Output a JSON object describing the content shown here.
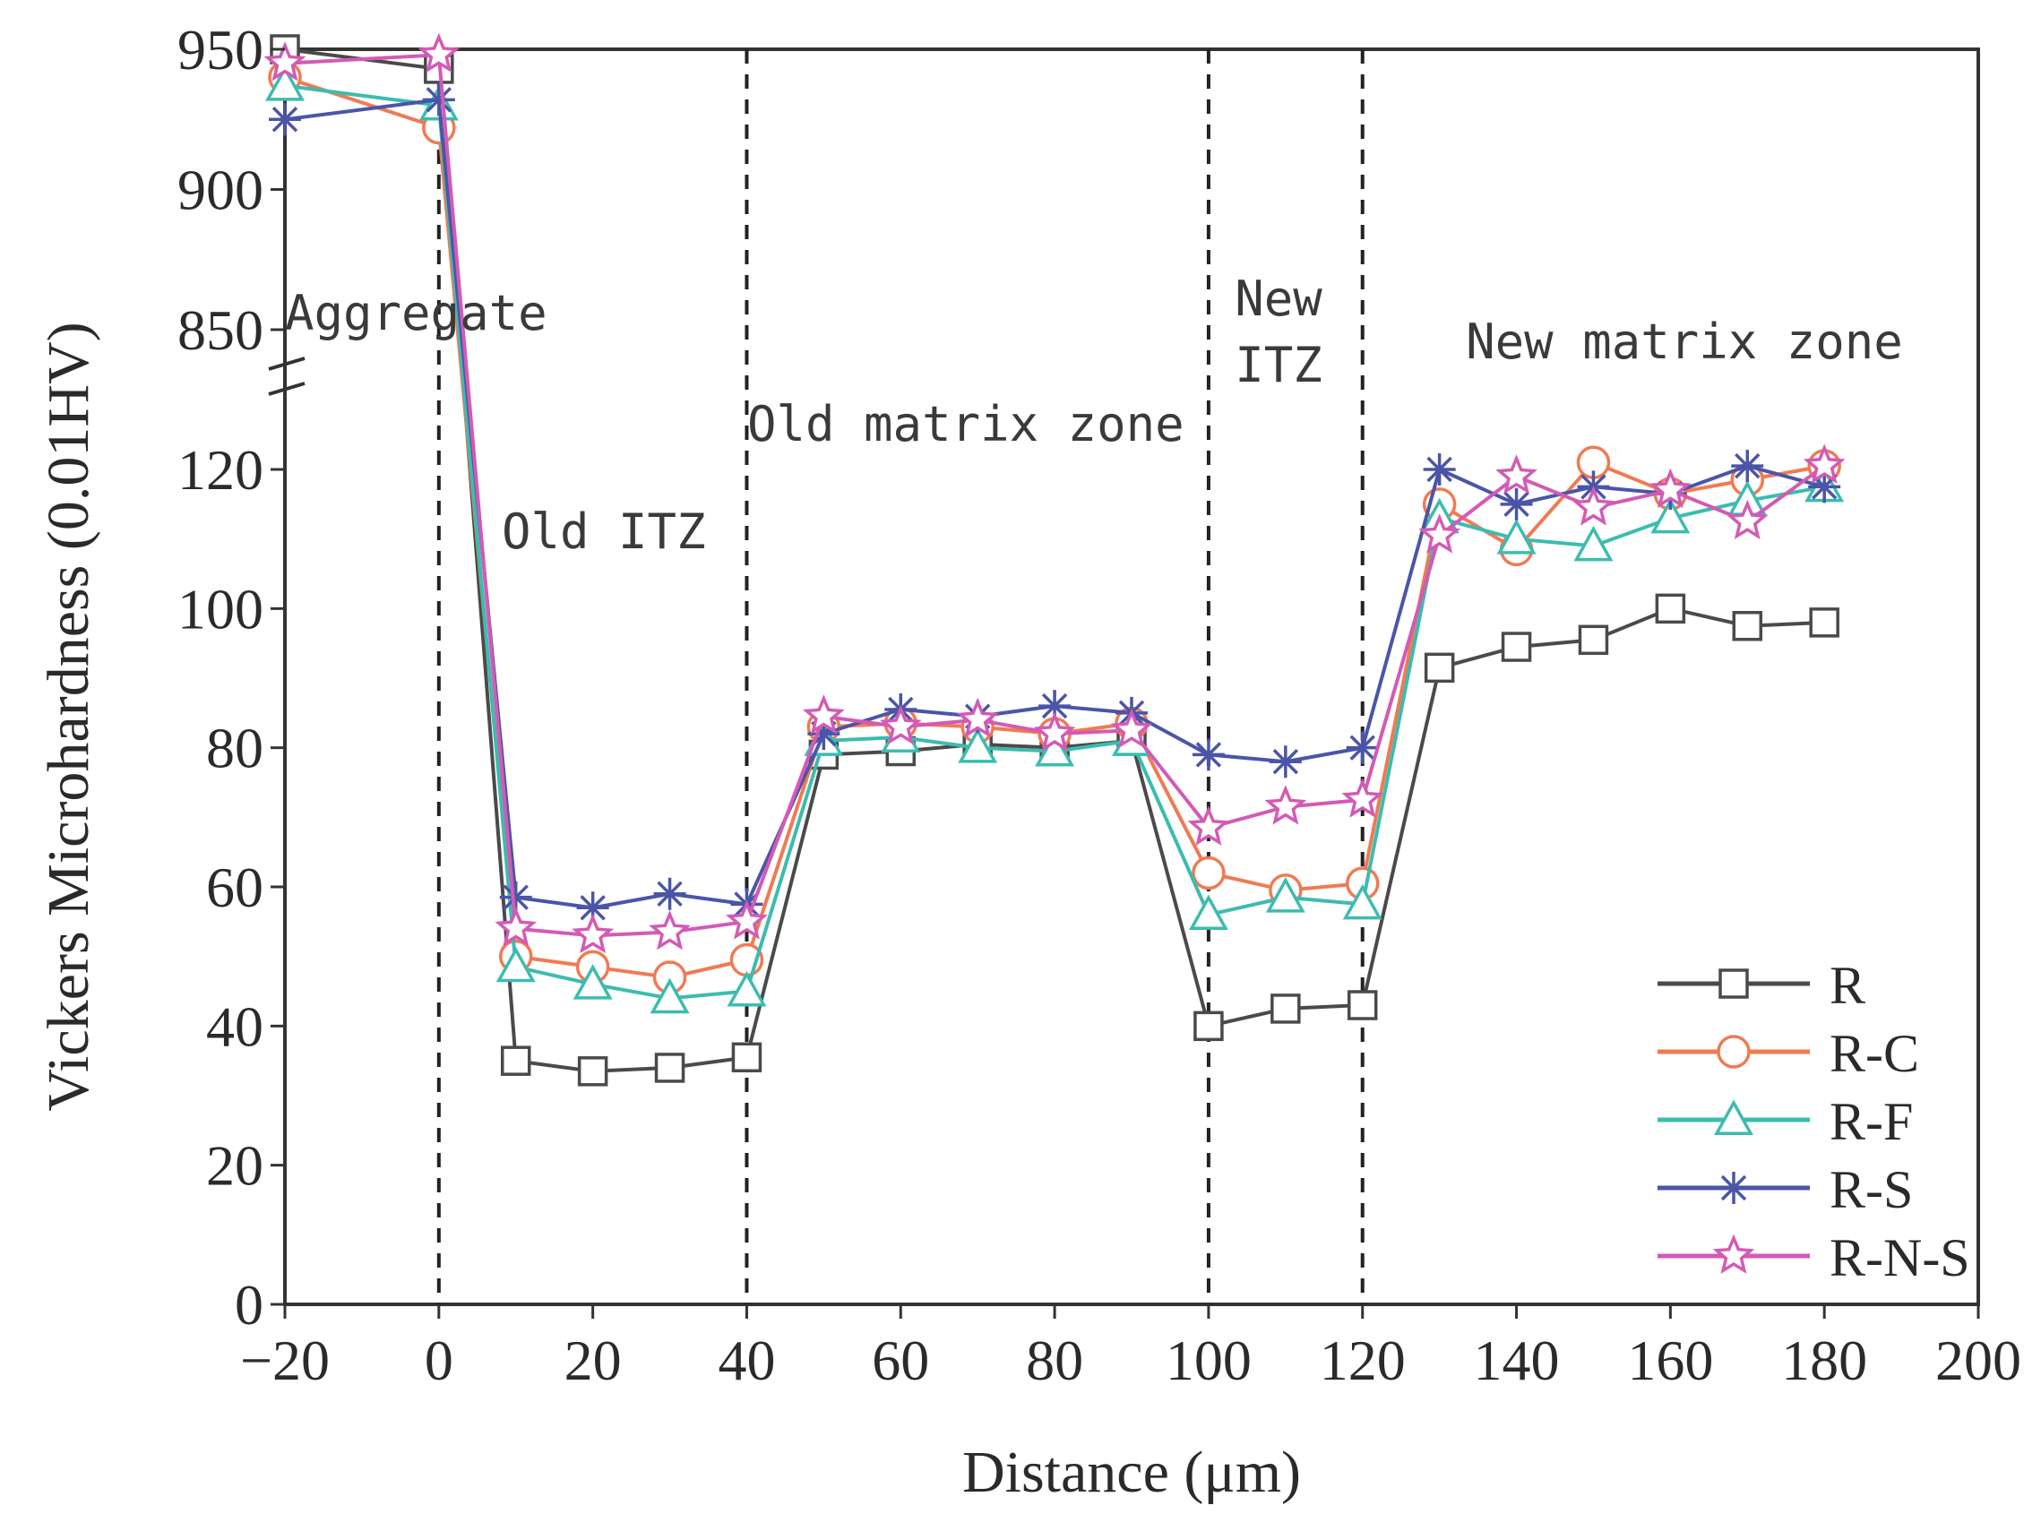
{
  "chart_data": {
    "type": "line",
    "title": "",
    "xlabel": "Distance (μm)",
    "ylabel": "Vickers Microhardness (0.01HV)",
    "xlim": [
      -20,
      200
    ],
    "x_ticks": [
      "−20",
      "0",
      "20",
      "40",
      "60",
      "80",
      "100",
      "120",
      "140",
      "160",
      "180",
      "200"
    ],
    "y_ticks": [
      "0",
      "20",
      "40",
      "60",
      "80",
      "100",
      "120",
      "850",
      "900",
      "950"
    ],
    "y_axis_break": "broken axis: 0–125 linear, then 850–950 (break mark between 120 and 850)",
    "grid": false,
    "legend_position": "bottom-right",
    "zone_dividers_x": [
      0,
      40,
      100,
      120
    ],
    "zones": [
      {
        "label": "Aggregate"
      },
      {
        "label": "Old ITZ"
      },
      {
        "label": "Old matrix zone"
      },
      {
        "label": "New",
        "label_line2": "ITZ"
      },
      {
        "label": "New matrix zone"
      }
    ],
    "series": [
      {
        "name": "R",
        "marker": "square",
        "color": "#4a4a4a",
        "x": [
          -20,
          0,
          10,
          20,
          30,
          40,
          50,
          60,
          70,
          80,
          90,
          100,
          110,
          120,
          130,
          140,
          150,
          160,
          170,
          180
        ],
        "y": [
          950,
          943,
          35,
          33.5,
          34,
          35.5,
          79,
          79.5,
          80.5,
          80,
          81,
          40,
          42.5,
          43,
          91.5,
          94.5,
          95.5,
          100,
          97.5,
          98
        ]
      },
      {
        "name": "R-C",
        "marker": "circle",
        "color": "#f07a52",
        "x": [
          -20,
          0,
          10,
          20,
          30,
          40,
          50,
          60,
          70,
          80,
          90,
          100,
          110,
          120,
          130,
          140,
          150,
          160,
          170,
          180
        ],
        "y": [
          940,
          922,
          50,
          48.5,
          47,
          49.5,
          83,
          83.5,
          83,
          82,
          83.5,
          62,
          59.5,
          60.5,
          115,
          108.5,
          121,
          116.5,
          118.5,
          120.5
        ]
      },
      {
        "name": "R-F",
        "marker": "triangle",
        "color": "#3bbcb0",
        "x": [
          -20,
          0,
          10,
          20,
          30,
          40,
          50,
          60,
          70,
          80,
          90,
          100,
          110,
          120,
          130,
          140,
          150,
          160,
          170,
          180
        ],
        "y": [
          937,
          930,
          48.5,
          46,
          44,
          45,
          81,
          81.5,
          80,
          79.5,
          81,
          56,
          58.5,
          57.5,
          113,
          110,
          109,
          113,
          115.5,
          117.5
        ]
      },
      {
        "name": "R-S",
        "marker": "asterisk",
        "color": "#4a55a8",
        "x": [
          -20,
          0,
          10,
          20,
          30,
          40,
          50,
          60,
          70,
          80,
          90,
          100,
          110,
          120,
          130,
          140,
          150,
          160,
          170,
          180
        ],
        "y": [
          925,
          932,
          58.5,
          57,
          59,
          57.5,
          82,
          85.5,
          84.5,
          86,
          85,
          79,
          78,
          80,
          120,
          115,
          117.5,
          116.5,
          120.5,
          117.5
        ]
      },
      {
        "name": "R-N-S",
        "marker": "star",
        "color": "#d35ab5",
        "x": [
          -20,
          0,
          10,
          20,
          30,
          40,
          50,
          60,
          70,
          80,
          90,
          100,
          110,
          120,
          130,
          140,
          150,
          160,
          170,
          180
        ],
        "y": [
          945,
          948,
          54,
          53,
          53.5,
          55,
          84.5,
          83,
          84,
          82,
          82.5,
          68.5,
          71.5,
          72.5,
          110.5,
          119,
          114.5,
          117,
          112.5,
          120.5
        ]
      }
    ]
  }
}
